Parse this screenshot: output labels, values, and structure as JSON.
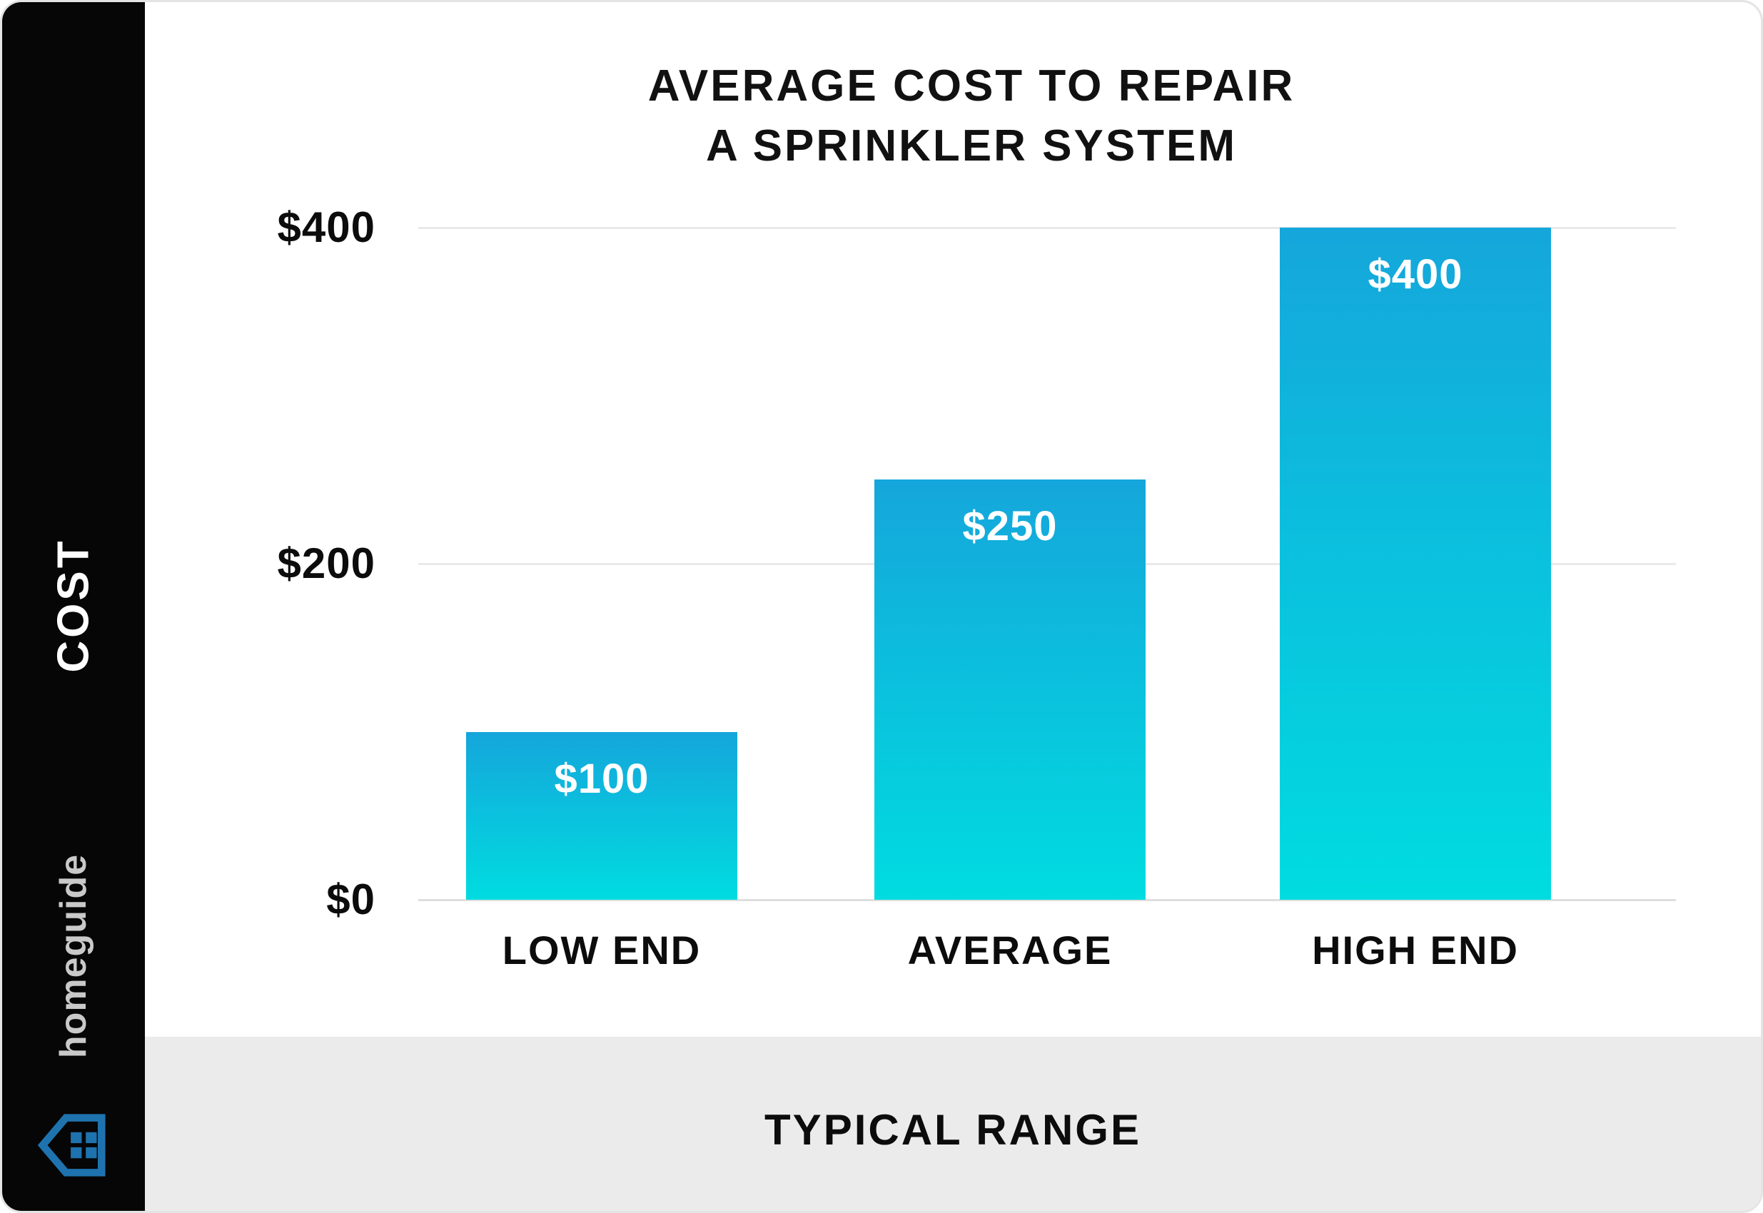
{
  "brand": {
    "name": "homeguide"
  },
  "colors": {
    "card_bg": "#ffffff",
    "card_border": "#e4e4e4",
    "sidebar_bg": "#060606",
    "sidebar_text": "#ffffff",
    "brand_text": "#c9c9c9",
    "brand_blue": "#1e73ae",
    "footer_bg": "#ebebeb",
    "grid_line": "#e9e9e9",
    "axis_line": "#dedede",
    "title_text": "#111111"
  },
  "chart_data": {
    "type": "bar",
    "title": "AVERAGE COST TO REPAIR A SPRINKLER SYSTEM",
    "title_lines": [
      "AVERAGE COST TO REPAIR",
      "A SPRINKLER SYSTEM"
    ],
    "categories": [
      "LOW END",
      "AVERAGE",
      "HIGH END"
    ],
    "values": [
      100,
      250,
      400
    ],
    "bar_labels": [
      "$100",
      "$250",
      "$400"
    ],
    "xlabel": "TYPICAL RANGE",
    "ylabel": "COST",
    "ylim": [
      0,
      400
    ],
    "y_ticks": [
      {
        "value": 0,
        "label": "$0"
      },
      {
        "value": 200,
        "label": "$200"
      },
      {
        "value": 400,
        "label": "$400"
      }
    ],
    "grid": "horizontal gridlines at y ticks, legend none",
    "bar_gradient_top": "#15a6db",
    "bar_gradient_bottom": "#00dce0",
    "value_label_color": "#ffffff"
  }
}
